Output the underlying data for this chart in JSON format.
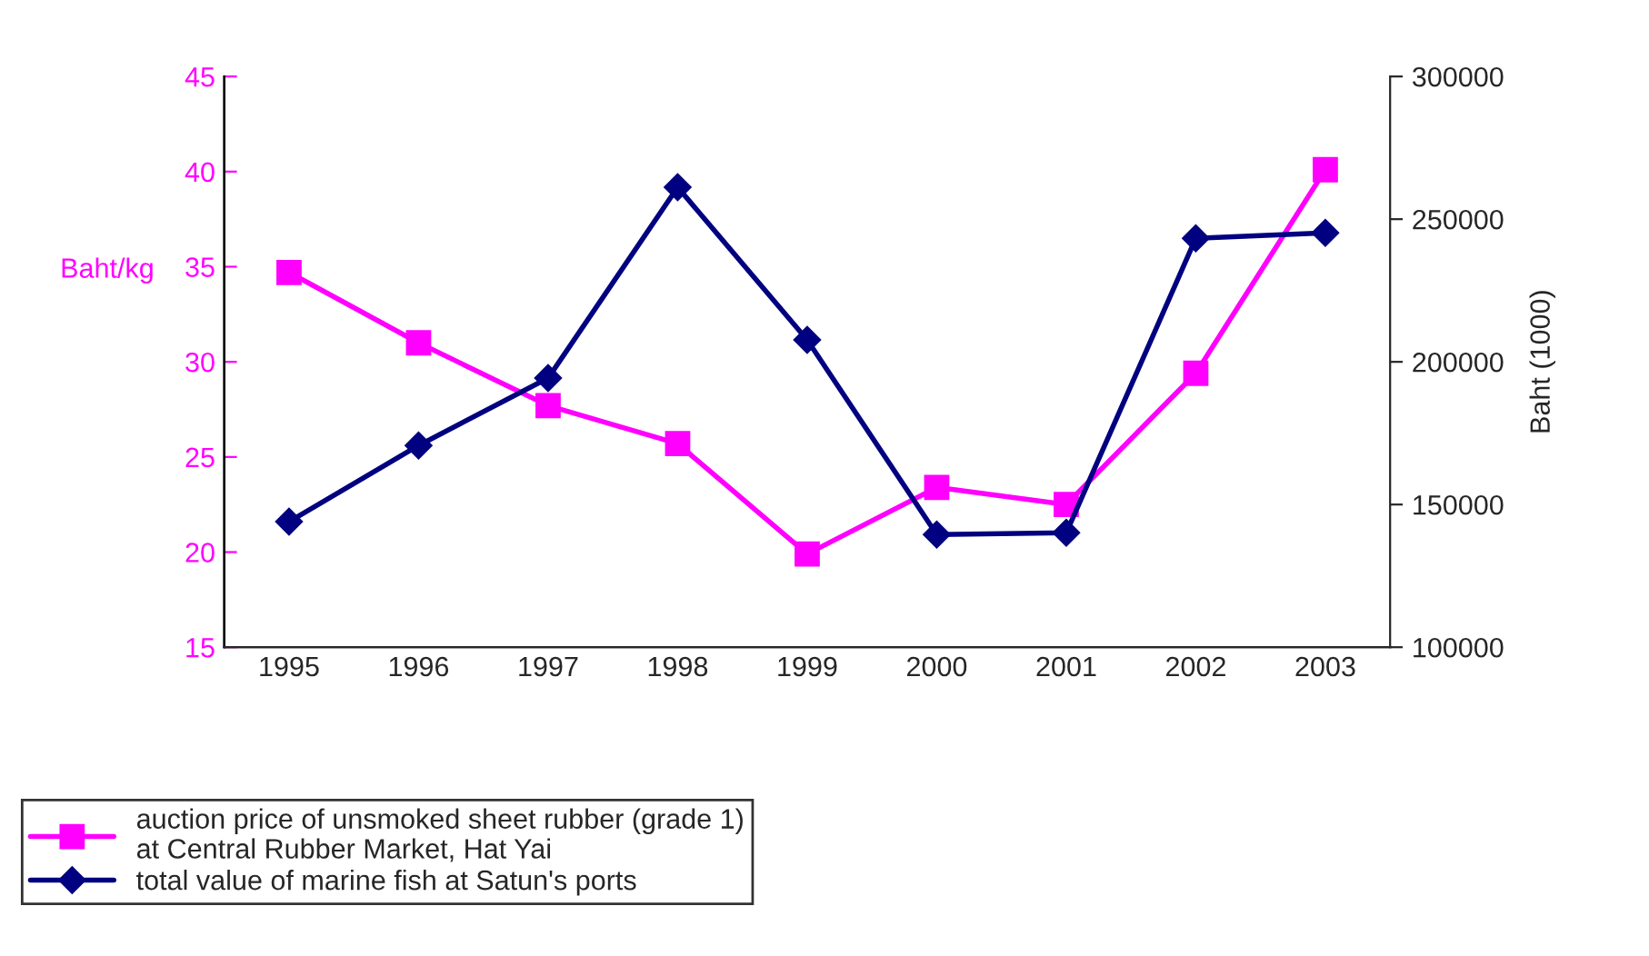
{
  "chart_data": {
    "type": "line",
    "categories": [
      "1995",
      "1996",
      "1997",
      "1998",
      "1999",
      "2000",
      "2001",
      "2002",
      "2003"
    ],
    "ylabel": "Baht/kg",
    "y2label": "Baht (1000)",
    "ylim": [
      15,
      45
    ],
    "yticks": [
      15,
      20,
      25,
      30,
      35,
      40,
      45
    ],
    "y2lim": [
      100000,
      300000
    ],
    "y2ticks": [
      100000,
      150000,
      200000,
      250000,
      300000
    ],
    "grid": false,
    "legend": "bottom",
    "line_style": "solid",
    "series": [
      {
        "name": "auction price of unsmoked sheet rubber (grade 1)\nat Central Rubber Market, Hat Yai",
        "color": "#ff00ff",
        "marker": "square",
        "values": [
          34.7,
          31.0,
          27.7,
          25.7,
          19.9,
          23.4,
          22.5,
          29.4,
          40.1
        ]
      },
      {
        "name": "total value of marine fish at Satun's ports",
        "color": "#000080",
        "marker": "diamond",
        "axis": "y2",
        "values": [
          144000,
          170700,
          194300,
          261200,
          207700,
          139500,
          140100,
          243300,
          245200
        ]
      }
    ]
  }
}
